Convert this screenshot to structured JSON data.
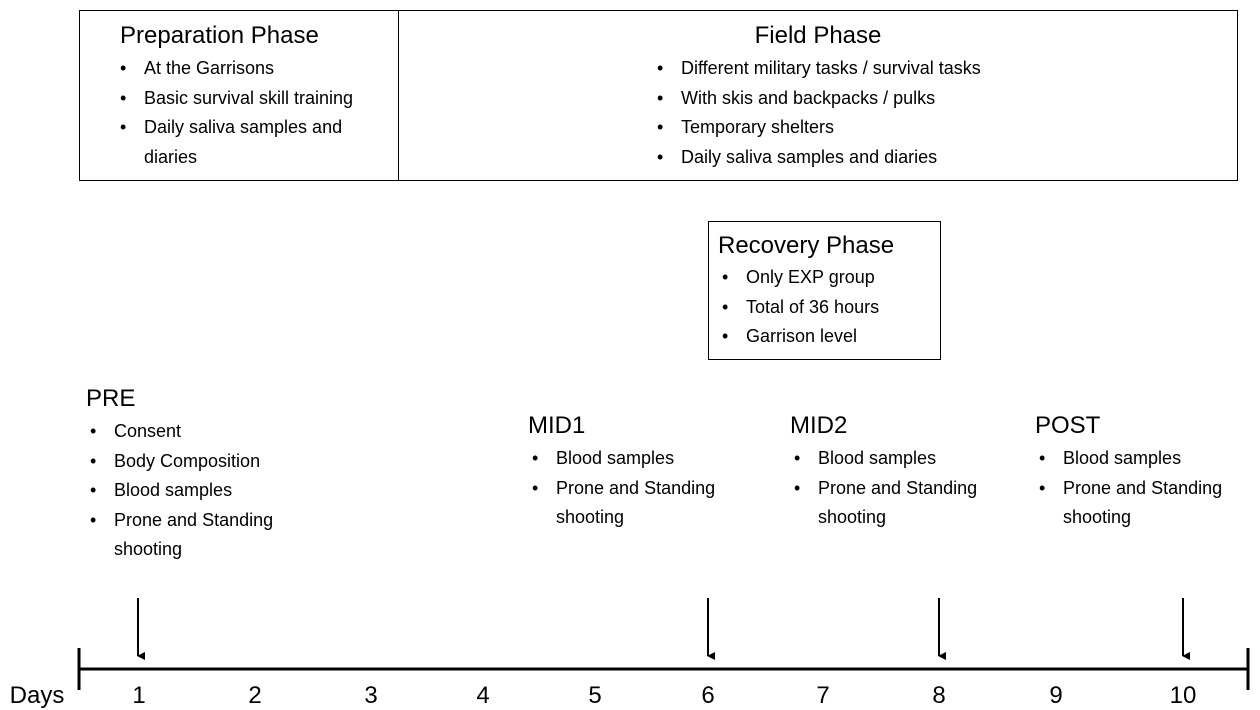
{
  "phases": [
    {
      "title": "Preparation Phase",
      "items": [
        "At the Garrisons",
        "Basic survival skill training",
        "Daily saliva samples and diaries"
      ]
    },
    {
      "title": "Field Phase",
      "items": [
        "Different military tasks / survival tasks",
        "With skis and backpacks / pulks",
        "Temporary shelters",
        "Daily saliva samples and diaries"
      ]
    },
    {
      "title": "Recovery Phase",
      "items": [
        "Only EXP group",
        "Total of 36 hours",
        "Garrison level"
      ]
    }
  ],
  "timepoints": [
    {
      "title": "PRE",
      "items": [
        "Consent",
        "Body Composition",
        "Blood samples",
        "Prone and Standing shooting"
      ]
    },
    {
      "title": "MID1",
      "items": [
        "Blood samples",
        "Prone and Standing shooting"
      ]
    },
    {
      "title": "MID2",
      "items": [
        "Blood samples",
        "Prone and Standing shooting"
      ]
    },
    {
      "title": "POST",
      "items": [
        "Blood samples",
        "Prone and Standing shooting"
      ]
    }
  ],
  "timeline": {
    "label": "Days",
    "days": [
      "1",
      "2",
      "3",
      "4",
      "5",
      "6",
      "7",
      "8",
      "9",
      "10"
    ]
  }
}
